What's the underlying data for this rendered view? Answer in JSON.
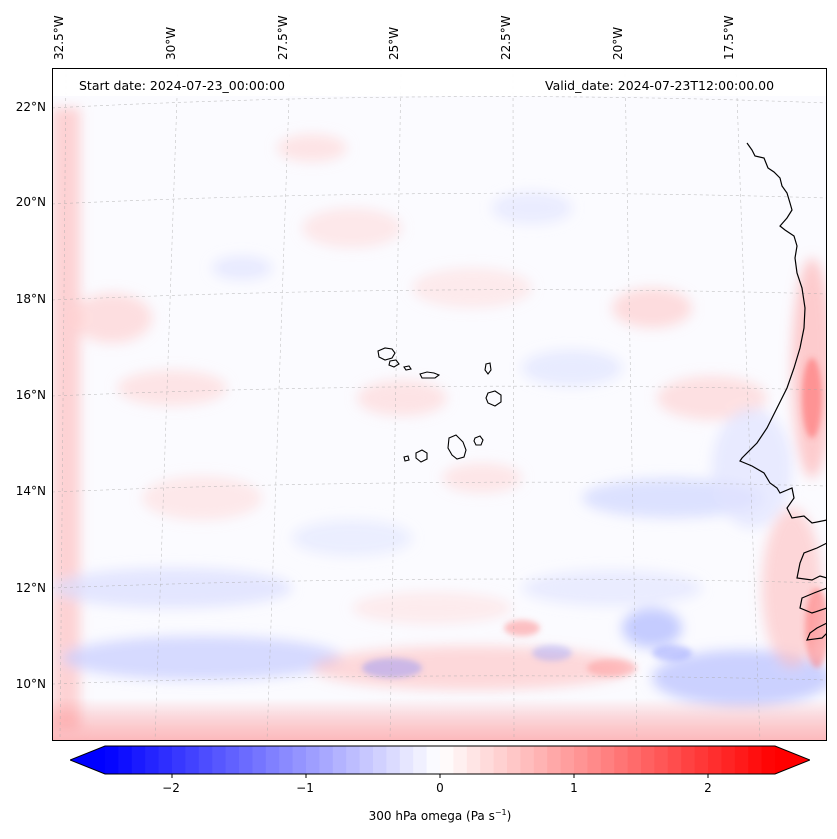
{
  "header": {
    "start_date": "Start date: 2024-07-23_00:00:00",
    "valid_date": "Valid_date: 2024-07-23T12:00:00.00"
  },
  "map": {
    "lon_labels": [
      "32.5°W",
      "30°W",
      "27.5°W",
      "25°W",
      "22.5°W",
      "20°W",
      "17.5°W"
    ],
    "lat_labels": [
      "22°N",
      "20°N",
      "18°N",
      "16°N",
      "14°N",
      "12°N",
      "10°N"
    ],
    "colormap": {
      "negative": "#0000ff",
      "zero": "#ffffff",
      "positive": "#ff0000"
    }
  },
  "colorbar": {
    "ticks": [
      "−2",
      "−1",
      "0",
      "1",
      "2"
    ],
    "tick_values": [
      -2,
      -1,
      0,
      1,
      2
    ],
    "range": [
      -2.5,
      2.5
    ],
    "label_prefix": "300 hPa omega (Pa s",
    "label_sup": "−1",
    "label_suffix": ")"
  }
}
